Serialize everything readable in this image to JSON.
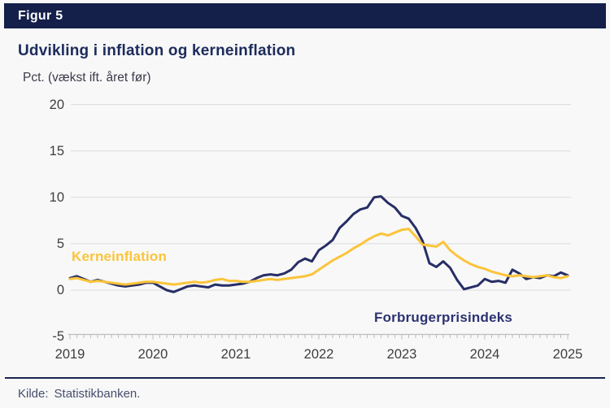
{
  "figure": {
    "tag": "Figur 5"
  },
  "title": "Udvikling i inflation og kerneinflation",
  "footer": {
    "label": "Kilde:",
    "source": "Statistikbanken."
  },
  "colors": {
    "header_bar": "#14204A",
    "title_text": "#1C2B5C",
    "core_inflation_yellow": "#FBC439",
    "cpi_navy": "#272E66",
    "axis_text": "#3E3E3D",
    "gridline": "#DBDBDB",
    "ruler": "#BDBDBD",
    "background": "#F8F8F8"
  },
  "chart_data": {
    "type": "line",
    "title": "Udvikling i inflation og kerneinflation",
    "unit_label": "Pct. (vækst ift. året før)",
    "x_start": "2019-01",
    "x_interval": "monthly",
    "x_tick_labels": [
      "2019",
      "2020",
      "2021",
      "2022",
      "2023",
      "2024",
      "2025"
    ],
    "y_ticks": [
      20,
      15,
      10,
      5,
      0,
      -5
    ],
    "ylim": [
      -5,
      20
    ],
    "grid": "horizontal",
    "legend_position": "inline-labels-on-chart",
    "series": [
      {
        "name": "Kerneinflation",
        "color": "#FBC439",
        "values": [
          1.2,
          1.3,
          1.1,
          0.9,
          1.0,
          0.9,
          0.8,
          0.7,
          0.6,
          0.7,
          0.8,
          0.9,
          0.9,
          0.8,
          0.7,
          0.6,
          0.7,
          0.8,
          0.9,
          0.8,
          0.9,
          1.1,
          1.2,
          1.0,
          1.0,
          0.9,
          0.9,
          1.0,
          1.1,
          1.2,
          1.1,
          1.2,
          1.3,
          1.4,
          1.5,
          1.7,
          2.2,
          2.7,
          3.2,
          3.6,
          4.0,
          4.5,
          4.9,
          5.4,
          5.8,
          6.1,
          5.9,
          6.2,
          6.5,
          6.6,
          5.8,
          4.9,
          4.8,
          4.7,
          5.2,
          4.3,
          3.7,
          3.2,
          2.8,
          2.5,
          2.3,
          2.0,
          1.8,
          1.6,
          1.5,
          1.6,
          1.5,
          1.4,
          1.5,
          1.6,
          1.4,
          1.3,
          1.5
        ]
      },
      {
        "name": "Forbrugerprisindeks",
        "color": "#272E66",
        "values": [
          1.3,
          1.5,
          1.2,
          0.9,
          1.1,
          0.9,
          0.7,
          0.5,
          0.4,
          0.5,
          0.6,
          0.8,
          0.8,
          0.4,
          0.0,
          -0.2,
          0.1,
          0.4,
          0.5,
          0.4,
          0.3,
          0.6,
          0.5,
          0.5,
          0.6,
          0.7,
          0.9,
          1.3,
          1.6,
          1.7,
          1.6,
          1.8,
          2.2,
          3.0,
          3.4,
          3.1,
          4.3,
          4.8,
          5.4,
          6.7,
          7.4,
          8.2,
          8.7,
          8.9,
          10.0,
          10.1,
          9.4,
          8.9,
          8.0,
          7.7,
          6.7,
          5.3,
          2.9,
          2.5,
          3.1,
          2.4,
          1.1,
          0.1,
          0.3,
          0.5,
          1.2,
          0.9,
          1.0,
          0.8,
          2.2,
          1.8,
          1.2,
          1.4,
          1.3,
          1.6,
          1.5,
          1.9,
          1.6
        ]
      }
    ]
  }
}
